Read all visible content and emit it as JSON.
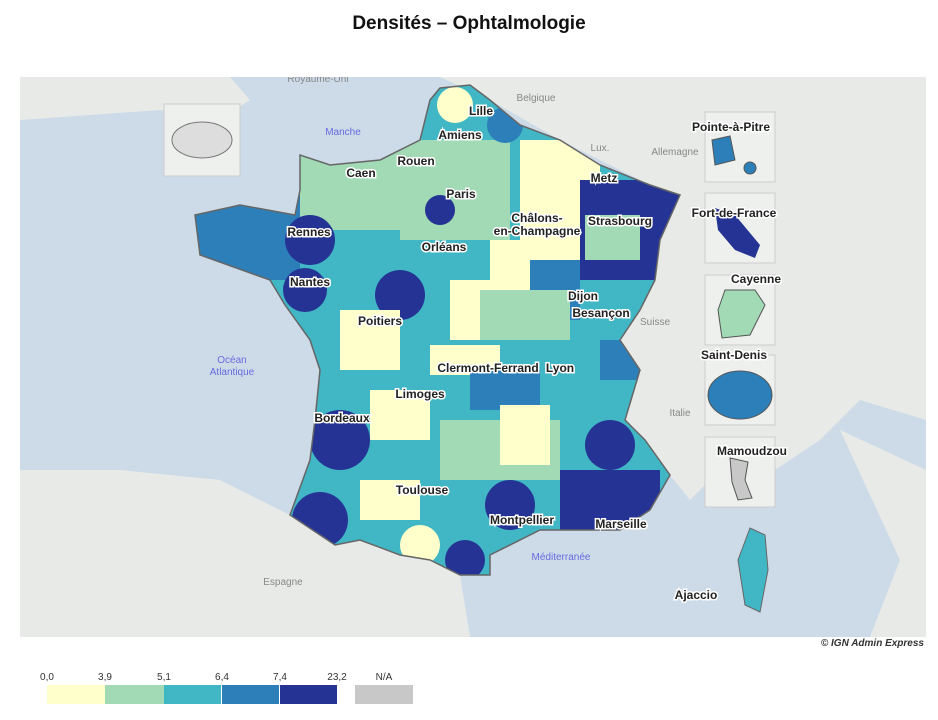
{
  "title": "Densités – Ophtalmologie",
  "copyright": "© IGN Admin Express",
  "colors": {
    "sea": "#cddbe8",
    "land": "#e8eae7",
    "c1": "#ffffcc",
    "c2": "#a1dab4",
    "c3": "#41b6c4",
    "c4": "#2c7fb8",
    "c5": "#253494",
    "na": "#c8c8c8"
  },
  "legend": {
    "breaks": [
      "0,0",
      "3,9",
      "5,1",
      "6,4",
      "7,4",
      "23,2"
    ],
    "na_label": "N/A"
  },
  "cities": [
    "Lille",
    "Amiens",
    "Rouen",
    "Caen",
    "Paris",
    "Metz",
    "Châlons-",
    "en-Champagne",
    "Strasbourg",
    "Rennes",
    "Orléans",
    "Nantes",
    "Dijon",
    "Besançon",
    "Poitiers",
    "Clermont-Ferrand",
    "Lyon",
    "Limoges",
    "Bordeaux",
    "Toulouse",
    "Montpellier",
    "Marseille",
    "Ajaccio"
  ],
  "places": [
    "Royaume-Uni",
    "Belgique",
    "Lux.",
    "Allemagne",
    "Suisse",
    "Italie",
    "Espagne"
  ],
  "seas": [
    "Manche",
    "Océan",
    "Atlantique",
    "Méditerranée"
  ],
  "insets": [
    "Pointe-à-Pitre",
    "Fort-de-France",
    "Cayenne",
    "Saint-Denis",
    "Mamoudzou"
  ]
}
